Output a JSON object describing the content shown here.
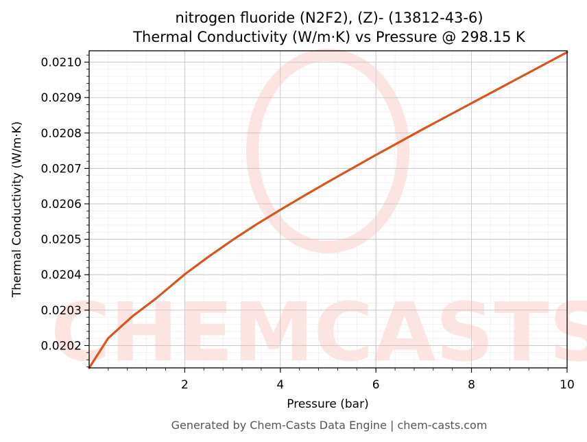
{
  "chart_data": {
    "type": "line",
    "title_line1": "nitrogen fluoride (N2F2), (Z)- (13812-43-6)",
    "title_line2": "Thermal Conductivity (W/m·K) vs Pressure @ 298.15 K",
    "xlabel": "Pressure (bar)",
    "ylabel": "Thermal Conductivity (W/m·K)",
    "xlim": [
      0.0,
      10.0
    ],
    "ylim": [
      0.020137,
      0.021032
    ],
    "x_ticks": [
      2,
      4,
      6,
      8,
      10
    ],
    "x_tick_labels": [
      "2",
      "4",
      "6",
      "8",
      "10"
    ],
    "y_ticks": [
      0.0202,
      0.0203,
      0.0204,
      0.0205,
      0.0206,
      0.0207,
      0.0208,
      0.0209,
      0.021
    ],
    "y_tick_labels": [
      "0.0202",
      "0.0203",
      "0.0204",
      "0.0205",
      "0.0206",
      "0.0207",
      "0.0208",
      "0.0209",
      "0.0210"
    ],
    "grid": true,
    "legend": "none",
    "series": [
      {
        "color": "#d9541e",
        "x": [
          0.0,
          0.4,
          0.9,
          1.4,
          2.0,
          2.5,
          3.0,
          3.5,
          4.0,
          4.5,
          5.0,
          5.5,
          6.0,
          6.5,
          7.0,
          7.5,
          8.0,
          8.5,
          9.0,
          9.5,
          10.0
        ],
        "y": [
          0.020137,
          0.020221,
          0.020282,
          0.020333,
          0.020401,
          0.020451,
          0.020498,
          0.020542,
          0.020583,
          0.020623,
          0.020662,
          0.0207,
          0.020738,
          0.020775,
          0.020812,
          0.020848,
          0.020884,
          0.02092,
          0.020956,
          0.020992,
          0.021028
        ]
      }
    ]
  },
  "watermark": {
    "text": "CHEMCASTS",
    "color": "#fde4e1"
  },
  "footer": {
    "text": "Generated by Chem-Casts Data Engine | chem-casts.com"
  }
}
